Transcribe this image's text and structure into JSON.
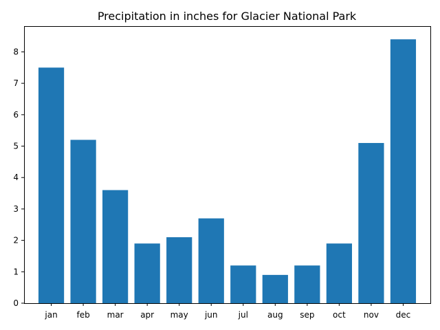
{
  "chart_data": {
    "type": "bar",
    "title": "Precipitation in inches for Glacier National Park",
    "xlabel": "",
    "ylabel": "",
    "categories": [
      "jan",
      "feb",
      "mar",
      "apr",
      "may",
      "jun",
      "jul",
      "aug",
      "sep",
      "oct",
      "nov",
      "dec"
    ],
    "values": [
      7.5,
      5.2,
      3.6,
      1.9,
      2.1,
      2.7,
      1.2,
      0.9,
      1.2,
      1.9,
      5.1,
      8.4
    ],
    "ylim": [
      0,
      8.82
    ],
    "yticks": [
      0,
      1,
      2,
      3,
      4,
      5,
      6,
      7,
      8
    ],
    "grid": false,
    "legend": "none",
    "bar_color": "#1f77b4"
  }
}
